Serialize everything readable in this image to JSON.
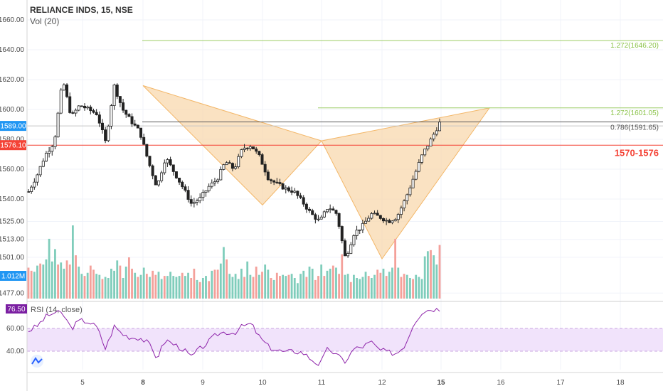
{
  "chart_data": [
    {
      "type": "candlestick",
      "symbol": "RELIANCE INDS, 15, NSE",
      "indicator_label": "Vol (20)",
      "y_ticks": [
        "1660.00",
        "1640.00",
        "1620.00",
        "1600.00",
        "1580.00",
        "1560.00",
        "1540.00",
        "1525.00",
        "1513.00",
        "1501.00",
        "1477.00"
      ],
      "x_ticks": [
        "5",
        "8",
        "9",
        "10",
        "11",
        "12",
        "15",
        "16",
        "17",
        "18"
      ],
      "price_tags": [
        {
          "label": "1589.00",
          "value": 1589,
          "color": "#2196f3"
        },
        {
          "label": "1576.10",
          "value": 1576.1,
          "color": "#f44336"
        },
        {
          "label": "1.012M",
          "color": "#2196f3"
        }
      ],
      "levels": [
        {
          "label": "1.272(1646.20)",
          "value": 1646.2,
          "color": "#9ccc65"
        },
        {
          "label": "1.272(1601.05)",
          "value": 1601.05,
          "color": "#9ccc65"
        },
        {
          "label": "0.786(1591.65)",
          "value": 1591.65,
          "color": "#555555"
        },
        {
          "label": "1570-1576",
          "value": 1576,
          "color": "#f44336"
        }
      ],
      "pattern": {
        "name": "harmonic",
        "points": [
          {
            "x": "8",
            "price": 1616
          },
          {
            "x": "10",
            "price": 1536
          },
          {
            "x": "11",
            "price": 1579
          },
          {
            "x": "12",
            "price": 1500
          },
          {
            "x": "15.8",
            "price": 1601
          }
        ],
        "fill": "#f8d8ae"
      },
      "price_path": [
        [
          0,
          1545
        ],
        [
          1,
          1556
        ],
        [
          2,
          1570
        ],
        [
          3,
          1578
        ],
        [
          4,
          1620
        ],
        [
          5,
          1595
        ],
        [
          6,
          1603
        ],
        [
          7,
          1600
        ],
        [
          8,
          1597
        ],
        [
          9,
          1578
        ],
        [
          10,
          1616
        ],
        [
          11,
          1600
        ],
        [
          12,
          1592
        ],
        [
          13,
          1585
        ],
        [
          14,
          1565
        ],
        [
          15,
          1548
        ],
        [
          16,
          1568
        ],
        [
          17,
          1558
        ],
        [
          18,
          1548
        ],
        [
          19,
          1537
        ],
        [
          20,
          1540
        ],
        [
          21,
          1548
        ],
        [
          22,
          1553
        ],
        [
          23,
          1565
        ],
        [
          24,
          1560
        ],
        [
          25,
          1574
        ],
        [
          26,
          1576
        ],
        [
          27,
          1568
        ],
        [
          28,
          1554
        ],
        [
          29,
          1550
        ],
        [
          30,
          1547
        ],
        [
          31,
          1545
        ],
        [
          32,
          1538
        ],
        [
          33,
          1530
        ],
        [
          34,
          1525
        ],
        [
          35,
          1535
        ],
        [
          36,
          1530
        ],
        [
          37,
          1500
        ],
        [
          38,
          1517
        ],
        [
          39,
          1522
        ],
        [
          40,
          1530
        ],
        [
          41,
          1528
        ],
        [
          42,
          1525
        ],
        [
          43,
          1528
        ],
        [
          44,
          1540
        ],
        [
          45,
          1555
        ],
        [
          46,
          1570
        ],
        [
          47,
          1580
        ],
        [
          48,
          1591
        ]
      ],
      "volume": [
        30,
        27,
        26,
        32,
        34,
        33,
        38,
        58,
        36,
        48,
        33,
        35,
        29,
        37,
        33,
        71,
        42,
        31,
        24,
        22,
        25,
        32,
        28,
        24,
        23,
        19,
        21,
        20,
        29,
        27,
        37,
        32,
        20,
        31,
        40,
        29,
        25,
        21,
        23,
        30,
        24,
        21,
        27,
        23,
        26,
        19,
        22,
        22,
        26,
        22,
        21,
        22,
        25,
        22,
        25,
        20,
        29,
        18,
        16,
        20,
        22,
        17,
        27,
        28,
        28,
        34,
        50,
        38,
        24,
        21,
        24,
        19,
        29,
        21,
        36,
        23,
        21,
        31,
        23,
        26,
        33,
        28,
        20,
        18,
        25,
        22,
        23,
        22,
        23,
        24,
        20,
        15,
        24,
        27,
        21,
        31,
        29,
        18,
        22,
        33,
        22,
        27,
        29,
        32,
        30,
        24,
        43,
        23,
        24,
        16,
        23,
        20,
        19,
        21,
        26,
        22,
        20,
        23,
        28,
        25,
        29,
        22,
        26,
        30,
        58,
        30,
        21,
        24,
        23,
        20,
        19,
        23,
        21,
        19,
        41,
        46,
        47,
        42,
        33,
        52
      ],
      "rsi": {
        "label": "RSI (14, close)",
        "value_label": "76.50",
        "y_ticks": [
          "60.00",
          "40.00"
        ],
        "band": [
          40,
          60
        ],
        "points": [
          [
            0,
            58
          ],
          [
            1,
            62
          ],
          [
            2,
            70
          ],
          [
            3,
            74
          ],
          [
            4,
            73
          ],
          [
            5,
            60
          ],
          [
            6,
            67
          ],
          [
            7,
            66
          ],
          [
            8,
            61
          ],
          [
            9,
            42
          ],
          [
            10,
            62
          ],
          [
            11,
            55
          ],
          [
            12,
            52
          ],
          [
            13,
            52
          ],
          [
            14,
            47
          ],
          [
            15,
            34
          ],
          [
            16,
            50
          ],
          [
            17,
            46
          ],
          [
            18,
            42
          ],
          [
            19,
            35
          ],
          [
            20,
            42
          ],
          [
            21,
            48
          ],
          [
            22,
            55
          ],
          [
            23,
            57
          ],
          [
            24,
            56
          ],
          [
            25,
            62
          ],
          [
            26,
            64
          ],
          [
            27,
            52
          ],
          [
            28,
            44
          ],
          [
            29,
            41
          ],
          [
            30,
            39
          ],
          [
            31,
            40
          ],
          [
            32,
            39
          ],
          [
            33,
            33
          ],
          [
            34,
            28
          ],
          [
            35,
            43
          ],
          [
            36,
            36
          ],
          [
            37,
            31
          ],
          [
            38,
            42
          ],
          [
            39,
            44
          ],
          [
            40,
            48
          ],
          [
            41,
            41
          ],
          [
            42,
            39
          ],
          [
            43,
            38
          ],
          [
            44,
            46
          ],
          [
            45,
            65
          ],
          [
            46,
            75
          ],
          [
            47,
            77
          ],
          [
            48,
            77
          ]
        ]
      }
    }
  ]
}
